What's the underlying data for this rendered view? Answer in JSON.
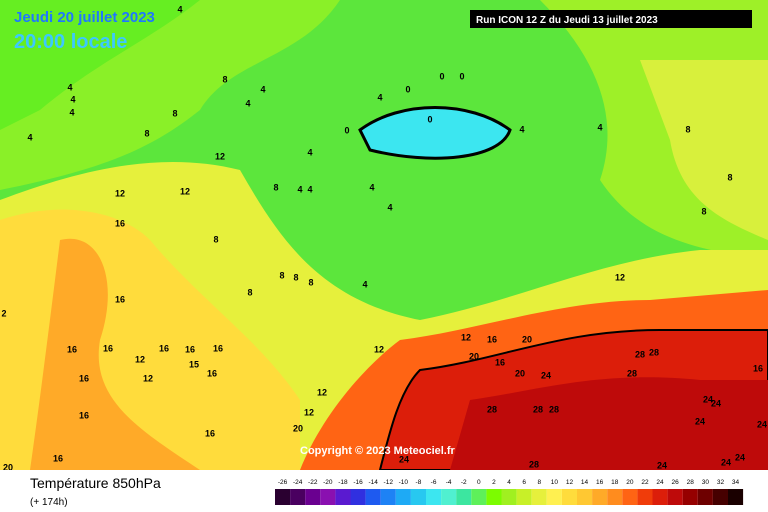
{
  "header": {
    "date": "Jeudi 20 juillet 2023",
    "time": "20:00 locale",
    "run": "Run ICON 12 Z du Jeudi 13 juillet 2023"
  },
  "map": {
    "copyright": "Copyright © 2023 Meteociel.fr",
    "contour_labels": [
      "4",
      "4",
      "4",
      "4",
      "4",
      "8",
      "8",
      "8",
      "4",
      "4",
      "12",
      "12",
      "12",
      "8",
      "4",
      "4",
      "4",
      "4",
      "4",
      "0",
      "0",
      "0",
      "0",
      "0",
      "4",
      "4",
      "4",
      "8",
      "8",
      "8",
      "16",
      "8",
      "8",
      "8",
      "8",
      "8",
      "4",
      "12",
      "16",
      "16",
      "16",
      "12",
      "16",
      "16",
      "16",
      "16",
      "12",
      "15",
      "16",
      "12",
      "12",
      "16",
      "20",
      "20",
      "16",
      "20",
      "24",
      "28",
      "28",
      "28",
      "16",
      "12",
      "12",
      "16",
      "16",
      "20",
      "28",
      "28",
      "28",
      "24",
      "24",
      "24",
      "24",
      "24",
      "28",
      "24",
      "24",
      "24",
      "20",
      "16",
      "2"
    ]
  },
  "footer": {
    "title": "Température 850hPa",
    "lead": "(+ 174h)"
  },
  "legend": {
    "labels": [
      "-26",
      "-24",
      "-22",
      "-20",
      "-18",
      "-16",
      "-14",
      "-12",
      "-10",
      "-8",
      "-6",
      "-4",
      "-2",
      "0",
      "2",
      "4",
      "6",
      "8",
      "10",
      "12",
      "14",
      "16",
      "18",
      "20",
      "22",
      "24",
      "26",
      "28",
      "30",
      "32",
      "34"
    ],
    "colors": [
      "#2a0030",
      "#4a0060",
      "#6a0090",
      "#8a10b0",
      "#5a1ad0",
      "#3030e0",
      "#1e5af0",
      "#1e82f5",
      "#1eaaf5",
      "#28c8f0",
      "#3ce6f0",
      "#50f0d0",
      "#3ce6a0",
      "#5ef05a",
      "#7cfc00",
      "#a0f020",
      "#c8f028",
      "#e6f03c",
      "#fff050",
      "#ffdc3c",
      "#ffc832",
      "#ffaa28",
      "#ff8c1e",
      "#ff6414",
      "#f03c0a",
      "#dc1e0a",
      "#be0a0a",
      "#960000",
      "#6e0000",
      "#460000",
      "#1a0000"
    ]
  }
}
